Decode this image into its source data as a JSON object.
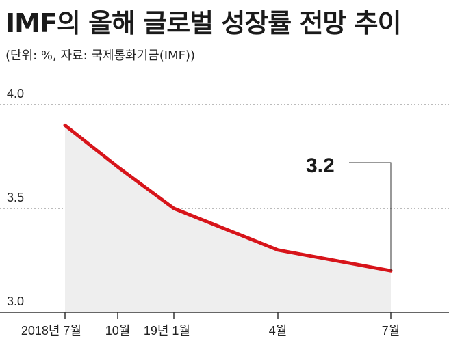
{
  "title": "IMF의 올해 글로벌 성장률 전망 추이",
  "subtitle": "(단위: %, 자료: 국제통화기금(IMF))",
  "chart_data": {
    "type": "area",
    "title": "IMF의 올해 글로벌 성장률 전망 추이",
    "subtitle": "(단위: %, 자료: 국제통화기금(IMF))",
    "xlabel": "",
    "ylabel": "",
    "x": [
      "2018년 7월",
      "10월",
      "19년 1월",
      "4월",
      "7월"
    ],
    "series": [
      {
        "values": [
          3.9,
          3.7,
          3.5,
          3.3,
          3.2
        ]
      }
    ],
    "ylim": [
      3.0,
      4.0
    ],
    "yticks": [
      3.0,
      3.5,
      4.0
    ],
    "ytick_labels": [
      "3.0",
      "3.5",
      "4.0"
    ],
    "annotations": [
      {
        "x": "7월",
        "text": "3.2"
      }
    ],
    "grid": "horizontal dotted",
    "legend": "none",
    "colors": {
      "line": "#d7141a",
      "area": "#eeeeee",
      "grid": "#777777"
    }
  }
}
